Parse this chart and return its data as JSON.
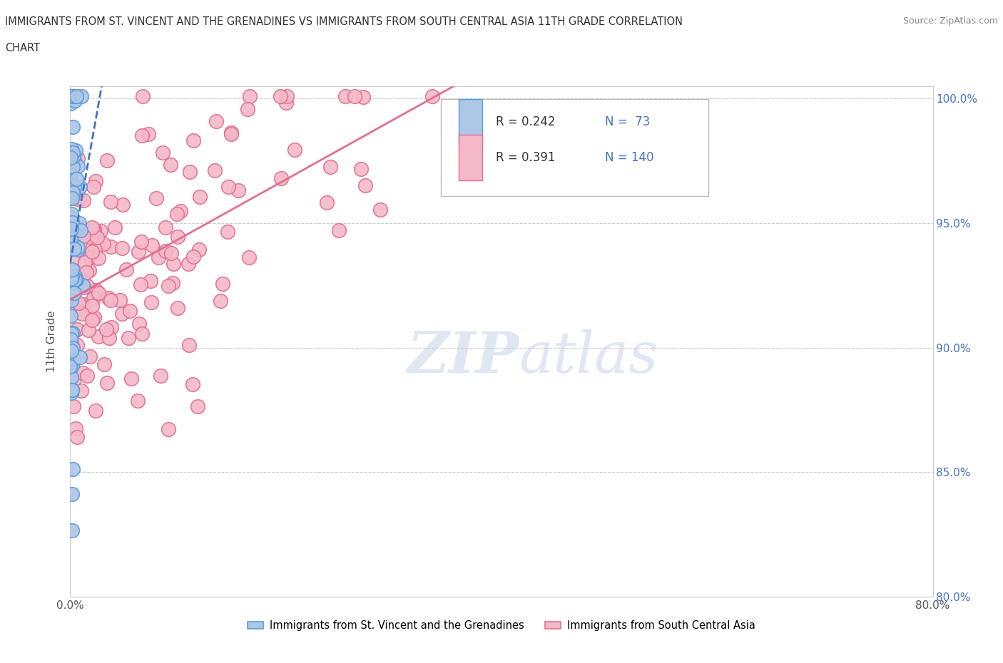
{
  "title_line1": "IMMIGRANTS FROM ST. VINCENT AND THE GRENADINES VS IMMIGRANTS FROM SOUTH CENTRAL ASIA 11TH GRADE CORRELATION",
  "title_line2": "CHART",
  "source_text": "Source: ZipAtlas.com",
  "ylabel": "11th Grade",
  "x_min": 0.0,
  "x_max": 0.8,
  "y_min": 0.8,
  "y_max": 1.005,
  "x_ticks": [
    0.0,
    0.2,
    0.4,
    0.6,
    0.8
  ],
  "x_tick_labels": [
    "0.0%",
    "",
    "",
    "",
    "80.0%"
  ],
  "y_ticks": [
    0.8,
    0.85,
    0.9,
    0.95,
    1.0
  ],
  "y_tick_labels": [
    "80.0%",
    "85.0%",
    "90.0%",
    "95.0%",
    "100.0%"
  ],
  "series1_color": "#aec6e8",
  "series1_edge_color": "#5b9bd5",
  "series2_color": "#f4b8c8",
  "series2_edge_color": "#e07090",
  "line1_color": "#4472c4",
  "line2_color": "#e07090",
  "R1": 0.242,
  "N1": 73,
  "R2": 0.391,
  "N2": 140,
  "legend_label1": "Immigrants from St. Vincent and the Grenadines",
  "legend_label2": "Immigrants from South Central Asia",
  "watermark": "ZIPatlas",
  "background_color": "#ffffff"
}
